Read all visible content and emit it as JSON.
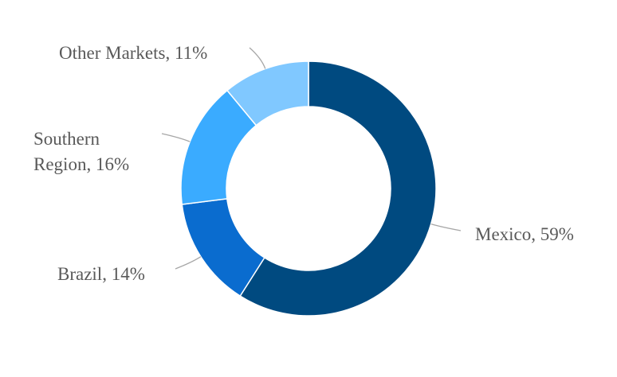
{
  "chart_data": {
    "type": "donut",
    "values": [
      59,
      14,
      16,
      11
    ],
    "value_labels": [
      "Mexico, 59%",
      "Brazil, 14%",
      "Southern Region, 16%",
      "Other Markets, 11%"
    ],
    "colors": [
      "#004a80",
      "#0a6ccf",
      "#3aabff",
      "#80c8ff"
    ]
  }
}
